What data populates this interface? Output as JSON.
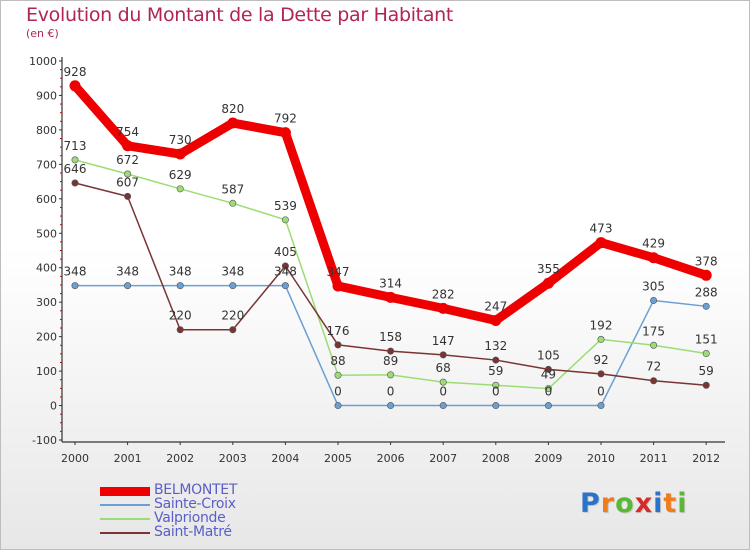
{
  "chart_data": {
    "type": "line",
    "title": "Evolution du Montant de la Dette par Habitant",
    "subtitle": "(en €)",
    "x": [
      "2000",
      "2001",
      "2002",
      "2003",
      "2004",
      "2005",
      "2006",
      "2007",
      "2008",
      "2009",
      "2010",
      "2011",
      "2012"
    ],
    "ylim": [
      -100,
      1000
    ],
    "yticks": [
      -100,
      0,
      100,
      200,
      300,
      400,
      500,
      600,
      700,
      800,
      900,
      1000
    ],
    "grid": false,
    "legend_position": "bottom-left",
    "series": [
      {
        "name": "BELMONTET",
        "color": "#ee0000",
        "values": [
          928,
          754,
          730,
          820,
          792,
          347,
          314,
          282,
          247,
          355,
          473,
          429,
          378
        ]
      },
      {
        "name": "Sainte-Croix",
        "color": "#6a9fd4",
        "values": [
          348,
          348,
          348,
          348,
          348,
          0,
          0,
          0,
          0,
          0,
          0,
          305,
          288
        ]
      },
      {
        "name": "Valprionde",
        "color": "#9bdd74",
        "values": [
          713,
          672,
          629,
          587,
          539,
          88,
          89,
          68,
          59,
          49,
          192,
          175,
          151
        ]
      },
      {
        "name": "Saint-Matré",
        "color": "#7a3434",
        "values": [
          646,
          607,
          220,
          220,
          405,
          176,
          158,
          147,
          132,
          105,
          92,
          72,
          59
        ]
      }
    ]
  },
  "logo": {
    "letters": [
      "P",
      "r",
      "o",
      "x",
      "i",
      "t",
      "i"
    ],
    "colors": [
      "#2a73c8",
      "#ee7d1a",
      "#5bb834",
      "#d42b2b",
      "#2a73c8",
      "#ee7d1a",
      "#5bb834"
    ]
  }
}
